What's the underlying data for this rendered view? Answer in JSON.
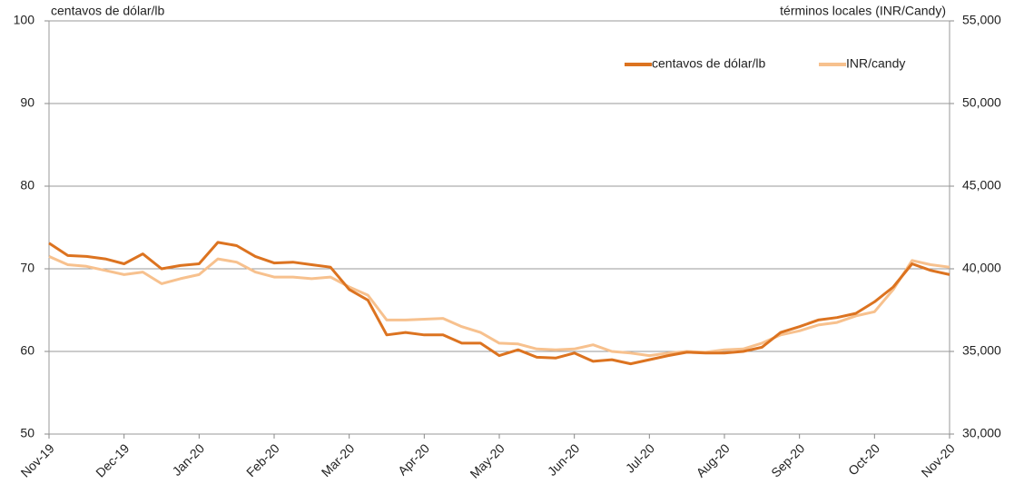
{
  "chart_data": {
    "type": "line",
    "ylabel": "centavos de dólar/lb",
    "y2label": "términos locales (INR/Candy)",
    "categories": [
      "Nov-19",
      null,
      null,
      null,
      "Dec-19",
      null,
      null,
      null,
      "Jan-20",
      null,
      null,
      null,
      "Feb-20",
      null,
      null,
      null,
      "Mar-20",
      null,
      null,
      null,
      "Apr-20",
      null,
      null,
      null,
      "May-20",
      null,
      null,
      null,
      "Jun-20",
      null,
      null,
      null,
      "Jul-20",
      null,
      null,
      null,
      "Aug-20",
      null,
      null,
      null,
      "Sep-20",
      null,
      null,
      null,
      "Oct-20",
      null,
      null,
      null,
      "Nov-20"
    ],
    "series": [
      {
        "name": "centavos de dólar/lb",
        "color": "#dc7320",
        "values": [
          73.1,
          71.6,
          71.5,
          71.2,
          70.6,
          71.8,
          70.0,
          70.4,
          70.6,
          73.2,
          72.8,
          71.5,
          70.7,
          70.8,
          70.5,
          70.2,
          67.5,
          66.2,
          62.0,
          62.3,
          62.0,
          62.0,
          61.0,
          61.0,
          59.5,
          60.2,
          59.3,
          59.2,
          59.8,
          58.8,
          59.0,
          58.5,
          59.0,
          59.5,
          59.9,
          59.8,
          59.8,
          60.0,
          60.5,
          62.3,
          63.0,
          63.8,
          64.1,
          64.6,
          66.0,
          67.8,
          70.6,
          69.8,
          69.3
        ]
      },
      {
        "name": "INR/candy",
        "color": "#f7c18e",
        "axis": "y2",
        "values": [
          40750,
          40250,
          40150,
          39900,
          39650,
          39800,
          39100,
          39400,
          39650,
          40600,
          40400,
          39800,
          39500,
          39500,
          39400,
          39500,
          38900,
          38400,
          36900,
          36900,
          36950,
          37000,
          36500,
          36150,
          35500,
          35450,
          35150,
          35100,
          35150,
          35400,
          35000,
          34900,
          34750,
          34900,
          35000,
          34950,
          35100,
          35150,
          35500,
          36000,
          36250,
          36600,
          36750,
          37150,
          37400,
          38750,
          40500,
          40250,
          40100
        ]
      }
    ],
    "ylim": [
      50,
      100
    ],
    "yticks": [
      50,
      60,
      70,
      80,
      90,
      100
    ],
    "y2lim": [
      30000,
      55000
    ],
    "y2ticks": [
      {
        "value": 30000,
        "label": "30,000"
      },
      {
        "value": 35000,
        "label": "35,000"
      },
      {
        "value": 40000,
        "label": "40,000"
      },
      {
        "value": 45000,
        "label": "45,000"
      },
      {
        "value": 50000,
        "label": "50,000"
      },
      {
        "value": 55000,
        "label": "55,000"
      }
    ],
    "grid": true,
    "legend": "top-right"
  }
}
